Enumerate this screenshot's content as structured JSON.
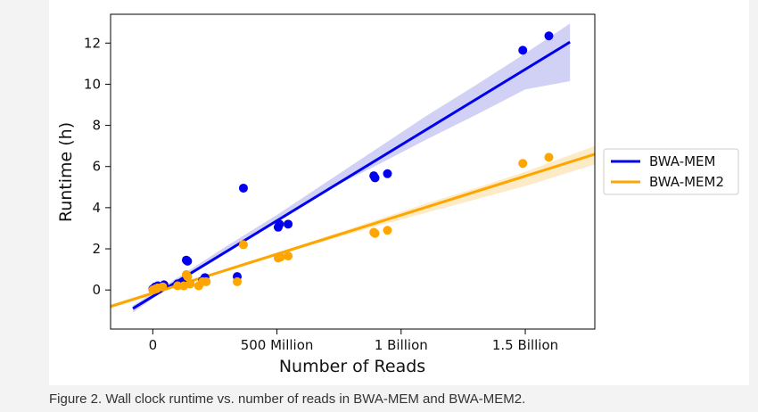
{
  "caption": "Figure 2. Wall clock runtime vs. number of reads in BWA-MEM and BWA-MEM2.",
  "chart_data": {
    "type": "scatter",
    "xlabel": "Number of Reads",
    "ylabel": "Runtime (h)",
    "xlim": [
      -170000000,
      1780000000
    ],
    "ylim": [
      -1.9,
      13.4
    ],
    "x_ticks": [
      {
        "value": 0,
        "label": "0"
      },
      {
        "value": 500000000,
        "label": "500 Million"
      },
      {
        "value": 1000000000,
        "label": "1 Billion"
      },
      {
        "value": 1500000000,
        "label": "1.5 Billion"
      }
    ],
    "y_ticks": [
      0,
      2,
      4,
      6,
      8,
      10,
      12
    ],
    "legend_position": "outside-right",
    "series": [
      {
        "name": "BWA-MEM",
        "color": "#0000ee",
        "band_color": "#c9c9f5",
        "points": [
          [
            0,
            0.05
          ],
          [
            10000000,
            0.15
          ],
          [
            20000000,
            0.2
          ],
          [
            30000000,
            0.1
          ],
          [
            45000000,
            0.25
          ],
          [
            100000000,
            0.3
          ],
          [
            120000000,
            0.35
          ],
          [
            135000000,
            1.45
          ],
          [
            140000000,
            1.4
          ],
          [
            150000000,
            0.3
          ],
          [
            200000000,
            0.45
          ],
          [
            210000000,
            0.6
          ],
          [
            340000000,
            0.65
          ],
          [
            365000000,
            4.95
          ],
          [
            505000000,
            3.05
          ],
          [
            510000000,
            3.2
          ],
          [
            545000000,
            3.2
          ],
          [
            890000000,
            5.55
          ],
          [
            895000000,
            5.45
          ],
          [
            945000000,
            5.65
          ],
          [
            1490000000,
            11.65
          ],
          [
            1595000000,
            12.35
          ]
        ],
        "fit": {
          "x": [
            -80000000,
            1680000000
          ],
          "y": [
            -0.9,
            12.05
          ]
        },
        "band": {
          "x": [
            -80000000,
            100000000,
            300000000,
            500000000,
            700000000,
            900000000,
            1100000000,
            1300000000,
            1500000000,
            1680000000
          ],
          "upper": [
            -0.75,
            0.6,
            2.15,
            3.65,
            5.25,
            6.85,
            8.45,
            9.95,
            11.5,
            12.95
          ],
          "lower": [
            -1.1,
            0.45,
            1.95,
            3.45,
            4.85,
            6.05,
            7.3,
            8.5,
            9.75,
            10.15
          ]
        }
      },
      {
        "name": "BWA-MEM2",
        "color": "#ffa500",
        "band_color": "#fde7bd",
        "points": [
          [
            0,
            0.0
          ],
          [
            10000000,
            0.05
          ],
          [
            20000000,
            0.1
          ],
          [
            40000000,
            0.15
          ],
          [
            100000000,
            0.2
          ],
          [
            125000000,
            0.2
          ],
          [
            135000000,
            0.75
          ],
          [
            140000000,
            0.65
          ],
          [
            150000000,
            0.3
          ],
          [
            185000000,
            0.2
          ],
          [
            200000000,
            0.4
          ],
          [
            215000000,
            0.4
          ],
          [
            340000000,
            0.4
          ],
          [
            365000000,
            2.2
          ],
          [
            505000000,
            1.55
          ],
          [
            515000000,
            1.6
          ],
          [
            545000000,
            1.65
          ],
          [
            890000000,
            2.8
          ],
          [
            895000000,
            2.75
          ],
          [
            945000000,
            2.9
          ],
          [
            1490000000,
            6.15
          ],
          [
            1595000000,
            6.45
          ]
        ],
        "fit": {
          "x": [
            -170000000,
            1780000000
          ],
          "y": [
            -0.8,
            6.6
          ]
        },
        "band": {
          "x": [
            -170000000,
            100000000,
            300000000,
            500000000,
            700000000,
            900000000,
            1100000000,
            1300000000,
            1500000000,
            1780000000
          ],
          "upper": [
            -0.7,
            0.3,
            1.05,
            1.8,
            2.6,
            3.4,
            4.2,
            4.95,
            5.75,
            7.0
          ],
          "lower": [
            -0.9,
            0.15,
            0.95,
            1.7,
            2.4,
            3.1,
            3.75,
            4.4,
            5.05,
            6.1
          ]
        }
      }
    ]
  }
}
